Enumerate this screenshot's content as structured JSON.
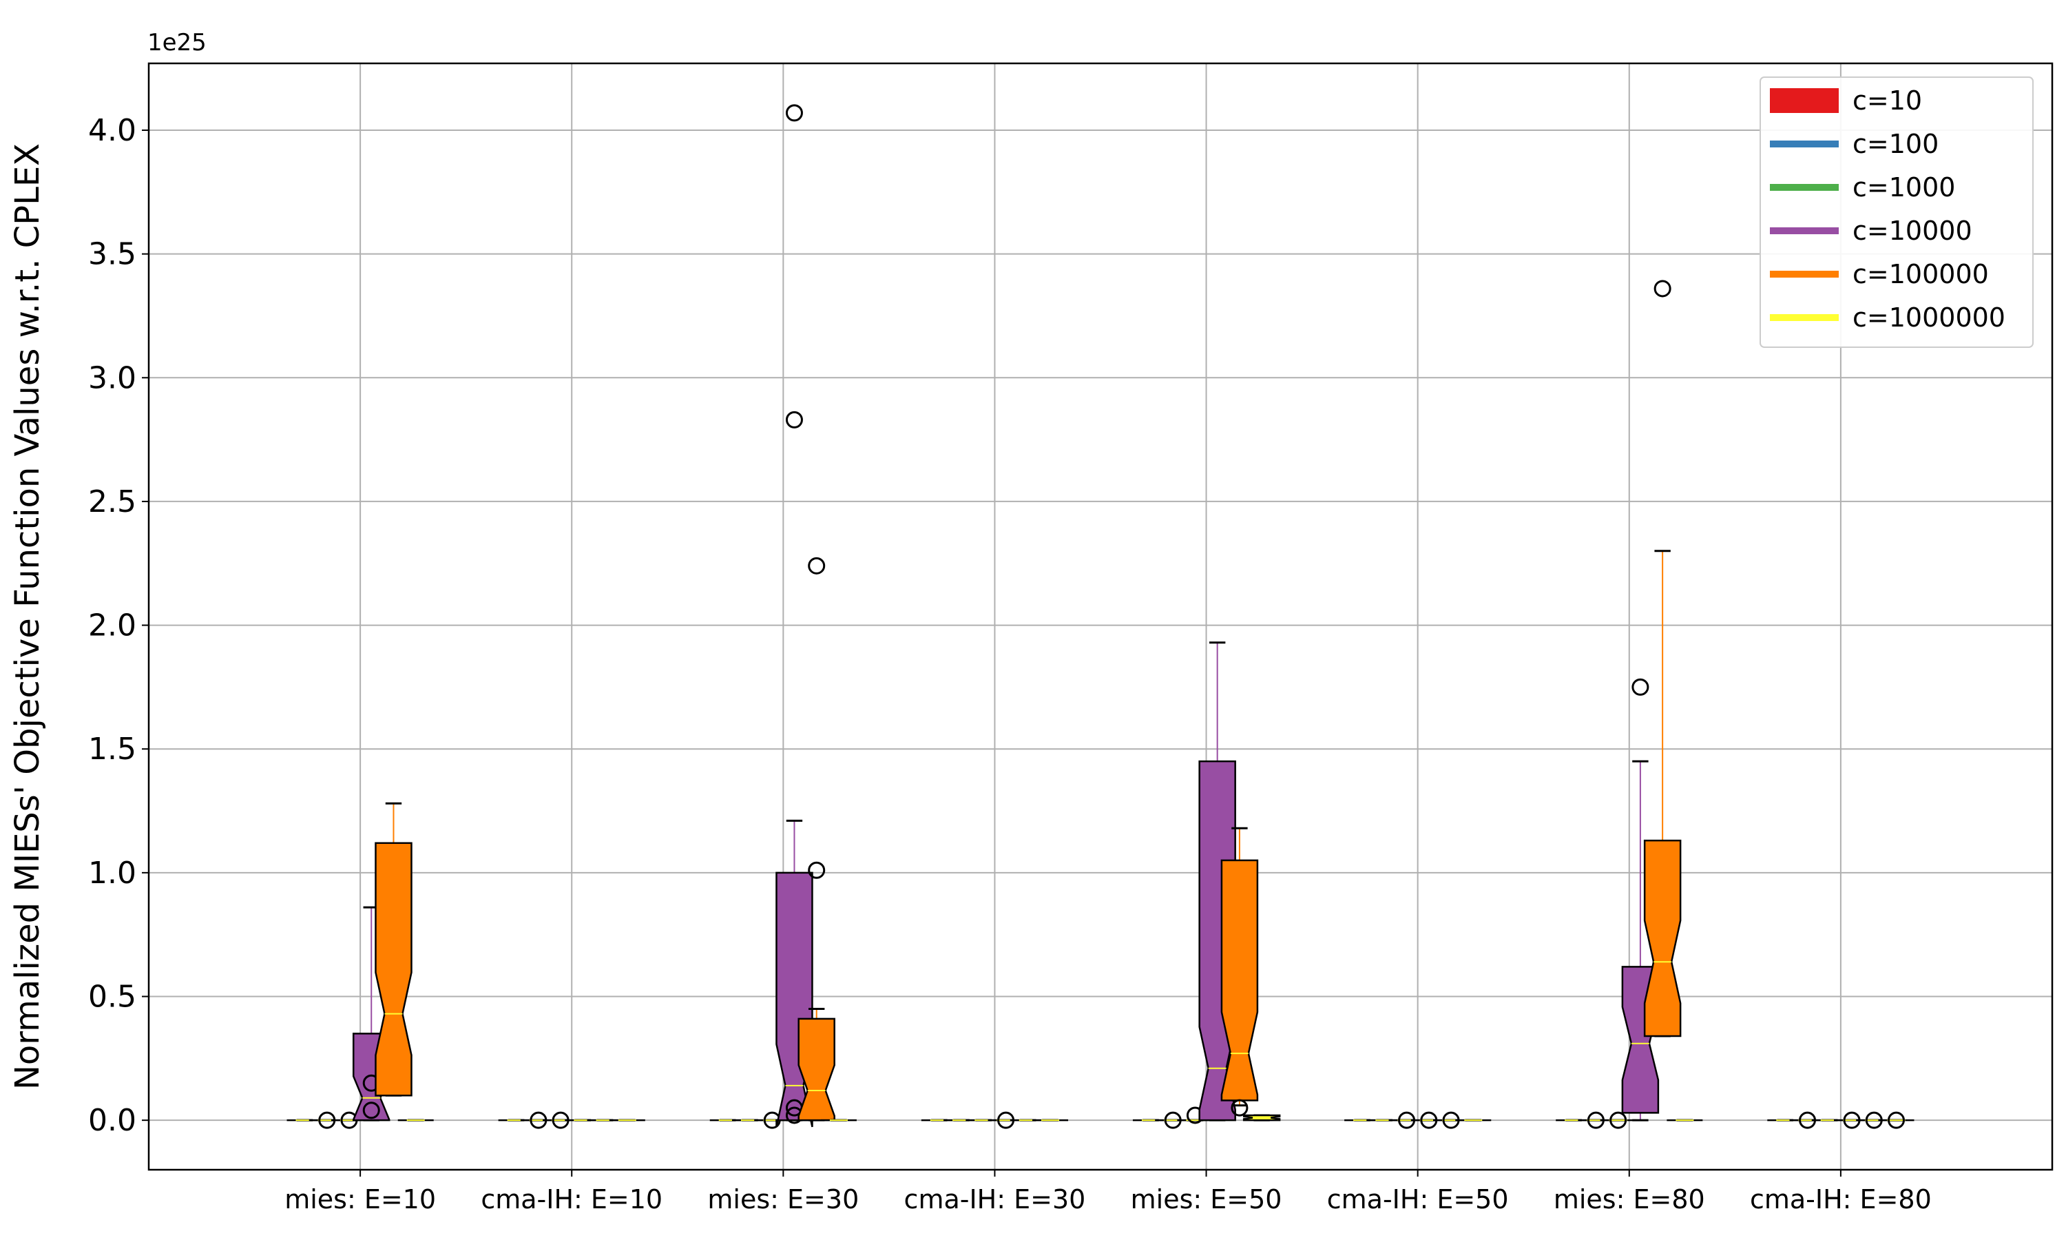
{
  "chart_data": {
    "type": "box",
    "ylabel": "Normalized MIESs' Objective Function Values w.r.t. CPLEX",
    "y_multiplier_label": "1e25",
    "ylim": [
      -0.2,
      4.27
    ],
    "y_ticks": [
      0.0,
      0.5,
      1.0,
      1.5,
      2.0,
      2.5,
      3.0,
      3.5,
      4.0
    ],
    "y_tick_labels": [
      "0.0",
      "0.5",
      "1.0",
      "1.5",
      "2.0",
      "2.5",
      "3.0",
      "3.5",
      "4.0"
    ],
    "categories": [
      "mies: E=10",
      "cma-IH: E=10",
      "mies: E=30",
      "cma-IH: E=30",
      "mies: E=50",
      "cma-IH: E=50",
      "mies: E=80",
      "cma-IH: E=80"
    ],
    "grid": true,
    "legend_position": "top-right",
    "legend": [
      {
        "label": "c=10",
        "color": "#e41a1c"
      },
      {
        "label": "c=100",
        "color": "#377eb8"
      },
      {
        "label": "c=1000",
        "color": "#4daf4a"
      },
      {
        "label": "c=10000",
        "color": "#984ea3"
      },
      {
        "label": "c=100000",
        "color": "#ff7f00"
      },
      {
        "label": "c=1000000",
        "color": "#ffff33"
      }
    ],
    "series": [
      {
        "name": "c=10",
        "color": "#e41a1c",
        "boxes": [
          {
            "category": "mies: E=10",
            "q1": 0,
            "median": 0,
            "q3": 0,
            "whisker_low": 0,
            "whisker_high": 0,
            "outliers": []
          },
          {
            "category": "cma-IH: E=10",
            "q1": 0,
            "median": 0,
            "q3": 0,
            "whisker_low": 0,
            "whisker_high": 0,
            "outliers": []
          },
          {
            "category": "mies: E=30",
            "q1": 0,
            "median": 0,
            "q3": 0,
            "whisker_low": 0,
            "whisker_high": 0,
            "outliers": []
          },
          {
            "category": "cma-IH: E=30",
            "q1": 0,
            "median": 0,
            "q3": 0,
            "whisker_low": 0,
            "whisker_high": 0,
            "outliers": []
          },
          {
            "category": "mies: E=50",
            "q1": 0,
            "median": 0,
            "q3": 0,
            "whisker_low": 0,
            "whisker_high": 0,
            "outliers": []
          },
          {
            "category": "cma-IH: E=50",
            "q1": 0,
            "median": 0,
            "q3": 0,
            "whisker_low": 0,
            "whisker_high": 0,
            "outliers": []
          },
          {
            "category": "mies: E=80",
            "q1": 0,
            "median": 0,
            "q3": 0,
            "whisker_low": 0,
            "whisker_high": 0,
            "outliers": []
          },
          {
            "category": "cma-IH: E=80",
            "q1": 0,
            "median": 0,
            "q3": 0,
            "whisker_low": 0,
            "whisker_high": 0,
            "outliers": []
          }
        ]
      },
      {
        "name": "c=100",
        "color": "#377eb8",
        "boxes": [
          {
            "category": "mies: E=10",
            "q1": 0,
            "median": 0,
            "q3": 0,
            "whisker_low": 0,
            "whisker_high": 0,
            "outliers": [
              0
            ]
          },
          {
            "category": "cma-IH: E=10",
            "q1": 0,
            "median": 0,
            "q3": 0,
            "whisker_low": 0,
            "whisker_high": 0,
            "outliers": [
              0
            ]
          },
          {
            "category": "mies: E=30",
            "q1": 0,
            "median": 0,
            "q3": 0,
            "whisker_low": 0,
            "whisker_high": 0,
            "outliers": []
          },
          {
            "category": "cma-IH: E=30",
            "q1": 0,
            "median": 0,
            "q3": 0,
            "whisker_low": 0,
            "whisker_high": 0,
            "outliers": []
          },
          {
            "category": "mies: E=50",
            "q1": 0,
            "median": 0,
            "q3": 0,
            "whisker_low": 0,
            "whisker_high": 0,
            "outliers": [
              0
            ]
          },
          {
            "category": "cma-IH: E=50",
            "q1": 0,
            "median": 0,
            "q3": 0,
            "whisker_low": 0,
            "whisker_high": 0,
            "outliers": []
          },
          {
            "category": "mies: E=80",
            "q1": 0,
            "median": 0,
            "q3": 0,
            "whisker_low": 0,
            "whisker_high": 0,
            "outliers": [
              0
            ]
          },
          {
            "category": "cma-IH: E=80",
            "q1": 0,
            "median": 0,
            "q3": 0,
            "whisker_low": 0,
            "whisker_high": 0,
            "outliers": [
              0
            ]
          }
        ]
      },
      {
        "name": "c=1000",
        "color": "#4daf4a",
        "boxes": [
          {
            "category": "mies: E=10",
            "q1": 0,
            "median": 0,
            "q3": 0,
            "whisker_low": 0,
            "whisker_high": 0,
            "outliers": [
              0
            ]
          },
          {
            "category": "cma-IH: E=10",
            "q1": 0,
            "median": 0,
            "q3": 0,
            "whisker_low": 0,
            "whisker_high": 0,
            "outliers": [
              0
            ]
          },
          {
            "category": "mies: E=30",
            "q1": 0,
            "median": 0,
            "q3": 0,
            "whisker_low": 0,
            "whisker_high": 0,
            "outliers": [
              0
            ]
          },
          {
            "category": "cma-IH: E=30",
            "q1": 0,
            "median": 0,
            "q3": 0,
            "whisker_low": 0,
            "whisker_high": 0,
            "outliers": []
          },
          {
            "category": "mies: E=50",
            "q1": 0,
            "median": 0,
            "q3": 0,
            "whisker_low": 0,
            "whisker_high": 0,
            "outliers": [
              0.02
            ]
          },
          {
            "category": "cma-IH: E=50",
            "q1": 0,
            "median": 0,
            "q3": 0,
            "whisker_low": 0,
            "whisker_high": 0,
            "outliers": [
              0
            ]
          },
          {
            "category": "mies: E=80",
            "q1": 0,
            "median": 0,
            "q3": 0,
            "whisker_low": 0,
            "whisker_high": 0,
            "outliers": [
              0
            ]
          },
          {
            "category": "cma-IH: E=80",
            "q1": 0,
            "median": 0,
            "q3": 0,
            "whisker_low": 0,
            "whisker_high": 0,
            "outliers": []
          }
        ]
      },
      {
        "name": "c=10000",
        "color": "#984ea3",
        "boxes": [
          {
            "category": "mies: E=10",
            "q1": 0.0,
            "median": 0.09,
            "q3": 0.35,
            "whisker_low": 0,
            "whisker_high": 0.86,
            "outliers": [
              0.04,
              0.15
            ]
          },
          {
            "category": "cma-IH: E=10",
            "q1": 0,
            "median": 0,
            "q3": 0,
            "whisker_low": 0,
            "whisker_high": 0,
            "outliers": []
          },
          {
            "category": "mies: E=30",
            "q1": 0.0,
            "median": 0.14,
            "q3": 1.0,
            "whisker_low": 0,
            "whisker_high": 1.21,
            "outliers": [
              0.02,
              0.05,
              2.83,
              4.07
            ]
          },
          {
            "category": "cma-IH: E=30",
            "q1": 0,
            "median": 0,
            "q3": 0,
            "whisker_low": 0,
            "whisker_high": 0,
            "outliers": [
              0
            ]
          },
          {
            "category": "mies: E=50",
            "q1": 0.0,
            "median": 0.21,
            "q3": 1.45,
            "whisker_low": 0,
            "whisker_high": 1.93,
            "outliers": []
          },
          {
            "category": "cma-IH: E=50",
            "q1": 0,
            "median": 0,
            "q3": 0,
            "whisker_low": 0,
            "whisker_high": 0,
            "outliers": [
              0
            ]
          },
          {
            "category": "mies: E=80",
            "q1": 0.03,
            "median": 0.31,
            "q3": 0.62,
            "whisker_low": 0,
            "whisker_high": 1.45,
            "outliers": [
              1.75
            ]
          },
          {
            "category": "cma-IH: E=80",
            "q1": 0,
            "median": 0,
            "q3": 0,
            "whisker_low": 0,
            "whisker_high": 0,
            "outliers": [
              0
            ]
          }
        ]
      },
      {
        "name": "c=100000",
        "color": "#ff7f00",
        "boxes": [
          {
            "category": "mies: E=10",
            "q1": 0.1,
            "median": 0.43,
            "q3": 1.12,
            "whisker_low": 0.1,
            "whisker_high": 1.28,
            "outliers": []
          },
          {
            "category": "cma-IH: E=10",
            "q1": 0,
            "median": 0,
            "q3": 0,
            "whisker_low": 0,
            "whisker_high": 0,
            "outliers": []
          },
          {
            "category": "mies: E=30",
            "q1": 0.0,
            "median": 0.12,
            "q3": 0.41,
            "whisker_low": 0,
            "whisker_high": 0.45,
            "outliers": [
              1.01,
              2.24
            ]
          },
          {
            "category": "cma-IH: E=30",
            "q1": 0,
            "median": 0,
            "q3": 0,
            "whisker_low": 0,
            "whisker_high": 0,
            "outliers": []
          },
          {
            "category": "mies: E=50",
            "q1": 0.08,
            "median": 0.27,
            "q3": 1.05,
            "whisker_low": 0.06,
            "whisker_high": 1.18,
            "outliers": [
              0.05
            ]
          },
          {
            "category": "cma-IH: E=50",
            "q1": 0,
            "median": 0,
            "q3": 0,
            "whisker_low": 0,
            "whisker_high": 0,
            "outliers": [
              0
            ]
          },
          {
            "category": "mies: E=80",
            "q1": 0.34,
            "median": 0.64,
            "q3": 1.13,
            "whisker_low": 0.34,
            "whisker_high": 2.3,
            "outliers": [
              3.36
            ]
          },
          {
            "category": "cma-IH: E=80",
            "q1": 0,
            "median": 0,
            "q3": 0,
            "whisker_low": 0,
            "whisker_high": 0,
            "outliers": [
              0
            ]
          }
        ]
      },
      {
        "name": "c=1000000",
        "color": "#ffff33",
        "boxes": [
          {
            "category": "mies: E=10",
            "q1": 0,
            "median": 0,
            "q3": 0,
            "whisker_low": 0,
            "whisker_high": 0,
            "outliers": []
          },
          {
            "category": "cma-IH: E=10",
            "q1": 0,
            "median": 0,
            "q3": 0,
            "whisker_low": 0,
            "whisker_high": 0,
            "outliers": []
          },
          {
            "category": "mies: E=30",
            "q1": 0,
            "median": 0,
            "q3": 0,
            "whisker_low": 0,
            "whisker_high": 0,
            "outliers": []
          },
          {
            "category": "cma-IH: E=30",
            "q1": 0,
            "median": 0,
            "q3": 0,
            "whisker_low": 0,
            "whisker_high": 0,
            "outliers": []
          },
          {
            "category": "mies: E=50",
            "q1": 0.0,
            "median": 0.01,
            "q3": 0.02,
            "whisker_low": 0,
            "whisker_high": 0.02,
            "outliers": []
          },
          {
            "category": "cma-IH: E=50",
            "q1": 0,
            "median": 0,
            "q3": 0,
            "whisker_low": 0,
            "whisker_high": 0,
            "outliers": []
          },
          {
            "category": "mies: E=80",
            "q1": 0,
            "median": 0,
            "q3": 0,
            "whisker_low": 0,
            "whisker_high": 0,
            "outliers": []
          },
          {
            "category": "cma-IH: E=80",
            "q1": 0,
            "median": 0,
            "q3": 0,
            "whisker_low": 0,
            "whisker_high": 0,
            "outliers": [
              0
            ]
          }
        ]
      }
    ]
  }
}
